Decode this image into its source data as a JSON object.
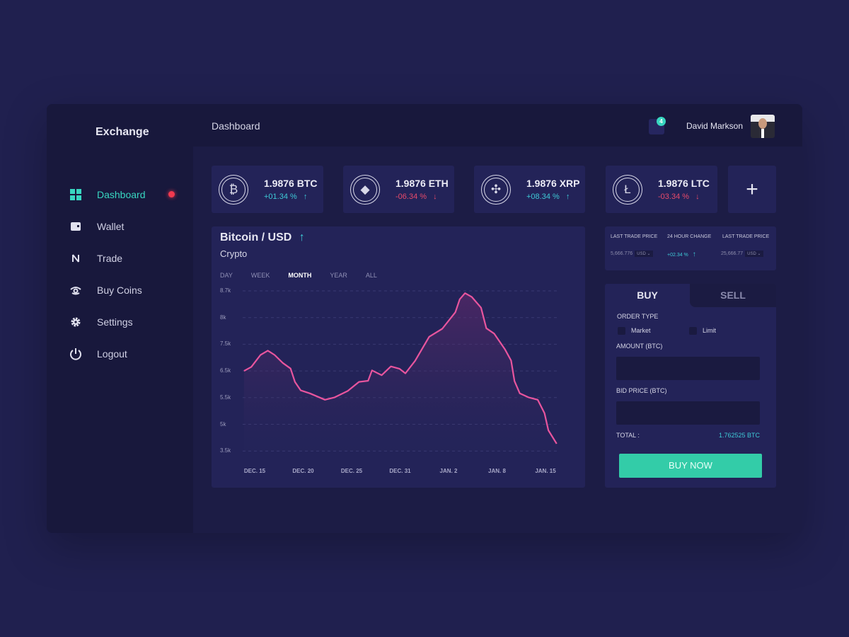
{
  "app": {
    "brand": "Exchange",
    "page_title": "Dashboard"
  },
  "header": {
    "notification_count": "4",
    "user_name": "David Markson"
  },
  "sidebar": {
    "items": [
      {
        "label": "Dashboard",
        "icon": "grid-icon",
        "active": true,
        "alert": true
      },
      {
        "label": "Wallet",
        "icon": "wallet-icon"
      },
      {
        "label": "Trade",
        "icon": "trade-icon"
      },
      {
        "label": "Buy Coins",
        "icon": "buy-coins-icon"
      },
      {
        "label": "Settings",
        "icon": "gear-icon"
      },
      {
        "label": "Logout",
        "icon": "power-icon"
      }
    ]
  },
  "coins": [
    {
      "amount": "1.9876 BTC",
      "change": "+01.34 %",
      "direction": "up",
      "icon": "bitcoin-icon",
      "glyph": "₿"
    },
    {
      "amount": "1.9876 ETH",
      "change": "-06.34 %",
      "direction": "down",
      "icon": "ethereum-icon",
      "glyph": "◆"
    },
    {
      "amount": "1.9876 XRP",
      "change": "+08.34 %",
      "direction": "up",
      "icon": "ripple-icon",
      "glyph": "✣"
    },
    {
      "amount": "1.9876 LTC",
      "change": "-03.34 %",
      "direction": "down",
      "icon": "litecoin-icon",
      "glyph": "Ł"
    }
  ],
  "add_label": "+",
  "stats": {
    "headers": [
      "LAST TRADE PRICE",
      "24 HOUR CHANGE",
      "LAST TRADE PRICE"
    ],
    "price1": "5,666.776",
    "currency1": "USD",
    "change": "+02.34 %",
    "price2": "25,666.77",
    "currency2": "USD"
  },
  "chart_panel": {
    "title": "Bitcoin / USD",
    "subtitle": "Crypto",
    "ranges": [
      "DAY",
      "WEEK",
      "MONTH",
      "YEAR",
      "ALL"
    ],
    "active_range": "MONTH"
  },
  "chart_data": {
    "type": "area",
    "line_color": "#e8559e",
    "grid": true,
    "y_ticks": [
      "8.7k",
      "8k",
      "7.5k",
      "6.5k",
      "5.5k",
      "5k",
      "3.5k"
    ],
    "y_tick_values": [
      8.7,
      8,
      7.5,
      6.5,
      5.5,
      5,
      3.5
    ],
    "x_ticks": [
      "DEC. 15",
      "DEC. 20",
      "DEC. 25",
      "DEC. 31",
      "JAN. 2",
      "JAN. 8",
      "JAN. 15"
    ],
    "x": [
      -0.22,
      -0.07,
      0.12,
      0.27,
      0.41,
      0.58,
      0.74,
      0.83,
      0.95,
      1.14,
      1.45,
      1.65,
      1.92,
      2.15,
      2.34,
      2.42,
      2.62,
      2.81,
      2.99,
      3.11,
      3.31,
      3.6,
      3.87,
      4.14,
      4.23,
      4.34,
      4.48,
      4.67,
      4.78,
      4.94,
      5.16,
      5.29,
      5.36,
      5.47,
      5.65,
      5.84,
      5.98,
      6.06,
      6.23
    ],
    "values": [
      6.5,
      6.65,
      7.1,
      7.26,
      7.1,
      6.8,
      6.59,
      6.09,
      5.77,
      5.66,
      5.46,
      5.51,
      5.75,
      6.09,
      6.13,
      6.52,
      6.34,
      6.67,
      6.58,
      6.41,
      6.88,
      7.64,
      7.79,
      8.14,
      8.48,
      8.64,
      8.54,
      8.26,
      7.8,
      7.7,
      7.32,
      6.89,
      6.12,
      5.66,
      5.51,
      5.46,
      5.21,
      4.66,
      3.91
    ]
  },
  "order": {
    "tabs": [
      "BUY",
      "SELL"
    ],
    "active_tab": "BUY",
    "order_type_label": "ORDER TYPE",
    "options": [
      "Market",
      "Limit"
    ],
    "amount_label": "AMOUNT (BTC)",
    "amount_value": "",
    "bid_label": "BID PRICE (BTC)",
    "bid_value": "",
    "total_label": "TOTAL :",
    "total_value": "1.762525 BTC",
    "submit": "BUY NOW"
  },
  "colors": {
    "accent": "#38d6c0",
    "up": "#3ec9d6",
    "down": "#e84a6a",
    "line": "#e8559e",
    "alert": "#f0394f"
  }
}
